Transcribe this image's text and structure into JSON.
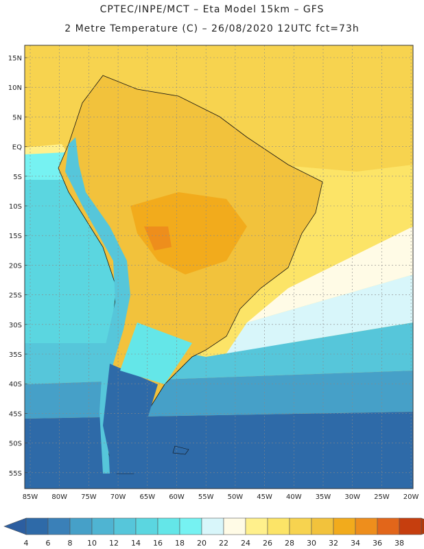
{
  "header": {
    "line1": "CPTEC/INPE/MCT –  Eta Model 15km – GFS",
    "line2": "2 Metre Temperature (C) – 26/08/2020 12UTC fct=73h"
  },
  "map": {
    "lat_labels": [
      "15N",
      "10N",
      "5N",
      "EQ",
      "5S",
      "10S",
      "15S",
      "20S",
      "25S",
      "30S",
      "35S",
      "40S",
      "45S",
      "50S",
      "55S"
    ],
    "lon_labels": [
      "85W",
      "80W",
      "75W",
      "70W",
      "65W",
      "60W",
      "55W",
      "50W",
      "45W",
      "40W",
      "35W",
      "30W",
      "25W",
      "20W"
    ]
  },
  "colorbar": {
    "labels": [
      "4",
      "6",
      "8",
      "10",
      "12",
      "14",
      "16",
      "18",
      "20",
      "22",
      "24",
      "26",
      "28",
      "30",
      "32",
      "34",
      "36",
      "38"
    ],
    "colors": [
      "#2e6aa8",
      "#3a80b8",
      "#46a0c8",
      "#4fb4d2",
      "#56c6da",
      "#5bd6e0",
      "#64e6e8",
      "#76f2f2",
      "#d8f6fa",
      "#fffbe6",
      "#fff08c",
      "#fce467",
      "#f7d34f",
      "#f2c23c",
      "#f2ab1c",
      "#ee8e1c",
      "#e2661a",
      "#c63e0e"
    ],
    "low_arrow_color": "#2c5ea0",
    "high_arrow_color": "#b03a0c"
  }
}
